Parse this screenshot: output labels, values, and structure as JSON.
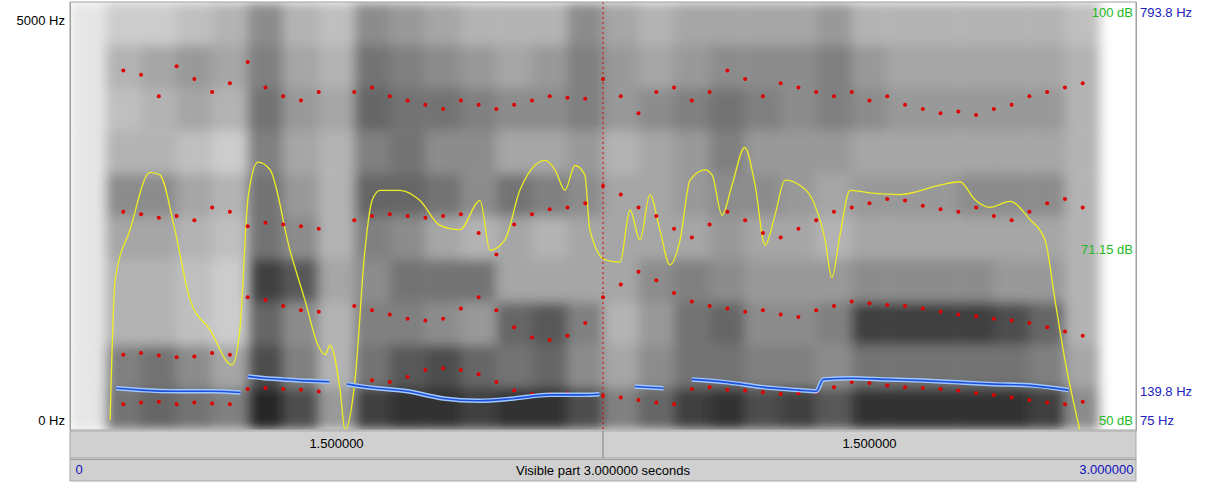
{
  "chart_data": {
    "type": "spectrogram",
    "xlim": [
      0,
      3
    ],
    "xticks": [
      0,
      {
        "value": 3,
        "label": "3.000000"
      }
    ],
    "x_label": "Visible part 3.000000 seconds",
    "cursor": 1.5,
    "cursor_segments": [
      {
        "value": 0.75,
        "label": "1.500000"
      },
      {
        "value": 2.25,
        "label": "1.500000"
      }
    ],
    "ylim": [
      0,
      5000
    ],
    "yticks": [
      {
        "value": 0,
        "label": "0 Hz"
      },
      {
        "value": 5000,
        "label": "5000 Hz"
      }
    ],
    "y2lim": [
      50,
      100
    ],
    "y2ticks": [
      {
        "value": 50,
        "label": "50 dB"
      },
      {
        "value": 71.15,
        "label": "71.15 dB"
      },
      {
        "value": 100,
        "label": "100 dB"
      }
    ],
    "y3lim": [
      75,
      793.8
    ],
    "y3ticks": [
      {
        "value": 75,
        "label": "75 Hz"
      },
      {
        "value": 139.8,
        "label": "139.8 Hz"
      },
      {
        "value": 793.8,
        "label": "793.8 Hz"
      }
    ],
    "spectrogram": {
      "zlim": [
        0,
        1
      ],
      "time_bins": [
        0,
        0.1,
        0.2,
        0.3,
        0.4,
        0.5,
        0.6,
        0.7,
        0.8,
        0.9,
        1.0,
        1.1,
        1.2,
        1.3,
        1.4,
        1.5,
        1.6,
        1.7,
        1.8,
        1.9,
        2.0,
        2.1,
        2.2,
        2.3,
        2.4,
        2.5,
        2.6,
        2.7,
        2.8,
        2.9,
        3.0
      ],
      "freq_bins": [
        0,
        500,
        1000,
        1500,
        2000,
        2500,
        3000,
        3500,
        4000,
        4500,
        5000
      ],
      "cells": [
        [
          0.1,
          0.1,
          0.1,
          0.1,
          0.1,
          0.1,
          0.1,
          0.1,
          0.1,
          0.1
        ],
        [
          0.55,
          0.5,
          0.3,
          0.3,
          0.35,
          0.45,
          0.3,
          0.25,
          0.3,
          0.2
        ],
        [
          0.6,
          0.55,
          0.3,
          0.3,
          0.35,
          0.45,
          0.3,
          0.3,
          0.35,
          0.2
        ],
        [
          0.55,
          0.45,
          0.25,
          0.25,
          0.3,
          0.35,
          0.25,
          0.35,
          0.4,
          0.25
        ],
        [
          0.5,
          0.35,
          0.2,
          0.2,
          0.25,
          0.3,
          0.2,
          0.3,
          0.35,
          0.3
        ],
        [
          0.85,
          0.7,
          0.6,
          0.75,
          0.55,
          0.55,
          0.5,
          0.55,
          0.5,
          0.45
        ],
        [
          0.7,
          0.5,
          0.45,
          0.65,
          0.45,
          0.4,
          0.35,
          0.4,
          0.35,
          0.3
        ],
        [
          0.4,
          0.3,
          0.3,
          0.35,
          0.3,
          0.3,
          0.3,
          0.35,
          0.3,
          0.25
        ],
        [
          0.75,
          0.55,
          0.5,
          0.45,
          0.5,
          0.6,
          0.5,
          0.6,
          0.55,
          0.45
        ],
        [
          0.8,
          0.65,
          0.5,
          0.55,
          0.45,
          0.6,
          0.55,
          0.55,
          0.5,
          0.4
        ],
        [
          0.8,
          0.7,
          0.45,
          0.55,
          0.35,
          0.55,
          0.45,
          0.55,
          0.45,
          0.35
        ],
        [
          0.75,
          0.6,
          0.4,
          0.55,
          0.3,
          0.45,
          0.45,
          0.5,
          0.4,
          0.3
        ],
        [
          0.8,
          0.55,
          0.6,
          0.35,
          0.35,
          0.55,
          0.35,
          0.45,
          0.35,
          0.3
        ],
        [
          0.8,
          0.6,
          0.65,
          0.35,
          0.3,
          0.5,
          0.35,
          0.45,
          0.4,
          0.3
        ],
        [
          0.7,
          0.45,
          0.5,
          0.35,
          0.35,
          0.45,
          0.4,
          0.5,
          0.5,
          0.45
        ],
        [
          0.5,
          0.35,
          0.3,
          0.35,
          0.35,
          0.35,
          0.3,
          0.4,
          0.4,
          0.35
        ],
        [
          0.6,
          0.45,
          0.4,
          0.45,
          0.35,
          0.35,
          0.35,
          0.45,
          0.35,
          0.3
        ],
        [
          0.75,
          0.55,
          0.55,
          0.5,
          0.35,
          0.4,
          0.4,
          0.5,
          0.4,
          0.35
        ],
        [
          0.8,
          0.55,
          0.6,
          0.45,
          0.4,
          0.45,
          0.5,
          0.55,
          0.45,
          0.35
        ],
        [
          0.7,
          0.5,
          0.45,
          0.4,
          0.35,
          0.45,
          0.4,
          0.5,
          0.45,
          0.35
        ],
        [
          0.75,
          0.5,
          0.45,
          0.4,
          0.35,
          0.4,
          0.4,
          0.45,
          0.45,
          0.35
        ],
        [
          0.65,
          0.45,
          0.5,
          0.4,
          0.3,
          0.35,
          0.4,
          0.5,
          0.5,
          0.4
        ],
        [
          0.8,
          0.55,
          0.75,
          0.45,
          0.35,
          0.4,
          0.35,
          0.45,
          0.4,
          0.3
        ],
        [
          0.8,
          0.55,
          0.75,
          0.45,
          0.35,
          0.4,
          0.35,
          0.4,
          0.35,
          0.3
        ],
        [
          0.8,
          0.55,
          0.75,
          0.45,
          0.35,
          0.4,
          0.35,
          0.4,
          0.35,
          0.3
        ],
        [
          0.8,
          0.55,
          0.75,
          0.45,
          0.35,
          0.45,
          0.35,
          0.4,
          0.35,
          0.3
        ],
        [
          0.8,
          0.55,
          0.7,
          0.4,
          0.35,
          0.45,
          0.35,
          0.4,
          0.35,
          0.3
        ],
        [
          0.75,
          0.5,
          0.6,
          0.4,
          0.35,
          0.45,
          0.35,
          0.4,
          0.35,
          0.3
        ],
        [
          0.45,
          0.35,
          0.3,
          0.3,
          0.3,
          0.3,
          0.3,
          0.3,
          0.3,
          0.25
        ],
        [
          0,
          0,
          0,
          0,
          0,
          0,
          0,
          0,
          0,
          0
        ]
      ]
    },
    "series": [
      {
        "type": "line",
        "axis": "y2",
        "color": "#eeee22",
        "line_style": "solid",
        "x": [
          0.113,
          0.127,
          0.169,
          0.225,
          0.253,
          0.295,
          0.338,
          0.394,
          0.456,
          0.478,
          0.501,
          0.529,
          0.563,
          0.619,
          0.661,
          0.698,
          0.718,
          0.732,
          0.76,
          0.774,
          0.802,
          0.83,
          0.85,
          0.872,
          0.929,
          0.985,
          1.041,
          1.097,
          1.154,
          1.182,
          1.224,
          1.266,
          1.337,
          1.365,
          1.393,
          1.421,
          1.449,
          1.463,
          1.505,
          1.548,
          1.576,
          1.604,
          1.632,
          1.66,
          1.688,
          1.717,
          1.745,
          1.787,
          1.807,
          1.835,
          1.863,
          1.899,
          1.928,
          1.956,
          1.984,
          2.012,
          2.054,
          2.096,
          2.125,
          2.144,
          2.167,
          2.195,
          2.251,
          2.336,
          2.448,
          2.504,
          2.547,
          2.589,
          2.645,
          2.701,
          2.744,
          2.772,
          2.8,
          2.842
        ],
        "values": [
          51.2,
          67.5,
          73.4,
          80.1,
          79.8,
          73.4,
          65.2,
          61.7,
          57.6,
          61.7,
          77.1,
          81.3,
          80.4,
          71.0,
          65.2,
          59.9,
          58.8,
          59.9,
          54.7,
          50.0,
          55.8,
          71.0,
          76.8,
          78.0,
          78.0,
          76.8,
          73.9,
          73.4,
          76.8,
          71.0,
          72.2,
          78.0,
          81.5,
          80.4,
          78.0,
          80.9,
          79.8,
          73.4,
          69.9,
          69.6,
          75.7,
          72.2,
          77.5,
          73.4,
          69.3,
          72.2,
          79.2,
          80.4,
          79.8,
          75.1,
          78.6,
          83.0,
          78.6,
          71.6,
          75.1,
          79.2,
          78.6,
          76.3,
          72.2,
          67.8,
          72.8,
          78.0,
          77.7,
          77.5,
          78.6,
          79.0,
          76.9,
          76.0,
          76.7,
          74.6,
          72.2,
          65.2,
          58.2,
          50.0
        ]
      },
      {
        "type": "scatter",
        "color": "#e00000",
        "marker": "dot",
        "x": [
          0.15,
          0.2,
          0.25,
          0.3,
          0.35,
          0.4,
          0.45,
          0.5,
          0.55,
          0.6,
          0.65,
          0.7,
          0.75,
          0.8,
          0.85,
          0.9,
          0.95,
          1.0,
          1.05,
          1.1,
          1.15,
          1.2,
          1.25,
          1.3,
          1.35,
          1.4,
          1.45,
          1.5,
          1.55,
          1.6,
          1.65,
          1.7,
          1.75,
          1.8,
          1.85,
          1.9,
          1.95,
          2.0,
          2.05,
          2.1,
          2.15,
          2.2,
          2.25,
          2.3,
          2.35,
          2.4,
          2.45,
          2.5,
          2.55,
          2.6,
          2.65,
          2.7,
          2.75,
          2.8,
          2.85
        ],
        "values": [
          300,
          320,
          330,
          300,
          320,
          310,
          300,
          480,
          490,
          480,
          470,
          450,
          null,
          520,
          580,
          560,
          620,
          700,
          720,
          700,
          650,
          560,
          460,
          420,
          420,
          430,
          410,
          400,
          380,
          350,
          320,
          300,
          480,
          500,
          470,
          460,
          440,
          420,
          430,
          440,
          500,
          560,
          550,
          520,
          500,
          490,
          480,
          460,
          430,
          410,
          380,
          350,
          320,
          300,
          330
        ]
      },
      {
        "type": "scatter",
        "color": "#e00000",
        "marker": "dot",
        "x": [
          0.15,
          0.2,
          0.25,
          0.3,
          0.35,
          0.4,
          0.45,
          0.5,
          0.55,
          0.6,
          0.65,
          0.7,
          0.75,
          0.8,
          0.85,
          0.9,
          0.95,
          1.0,
          1.05,
          1.1,
          1.15,
          1.2,
          1.25,
          1.3,
          1.35,
          1.4,
          1.45,
          1.5,
          1.55,
          1.6,
          1.65,
          1.7,
          1.75,
          1.8,
          1.85,
          1.9,
          1.95,
          2.0,
          2.05,
          2.1,
          2.15,
          2.2,
          2.25,
          2.3,
          2.35,
          2.4,
          2.45,
          2.5,
          2.55,
          2.6,
          2.65,
          2.7,
          2.75,
          2.8,
          2.85
        ],
        "values": [
          880,
          900,
          870,
          850,
          860,
          900,
          880,
          1550,
          1520,
          1450,
          1400,
          1380,
          null,
          1450,
          1400,
          1350,
          1300,
          1280,
          1300,
          1420,
          1550,
          1400,
          1200,
          1080,
          1050,
          1100,
          1250,
          1550,
          1700,
          1850,
          1750,
          1600,
          1500,
          1450,
          1420,
          1380,
          1400,
          1350,
          1320,
          1400,
          1450,
          1500,
          1480,
          1460,
          1450,
          1420,
          1380,
          1350,
          1330,
          1300,
          1280,
          1250,
          1200,
          1150,
          1100
        ]
      },
      {
        "type": "scatter",
        "color": "#e00000",
        "marker": "dot",
        "x": [
          0.15,
          0.2,
          0.25,
          0.3,
          0.35,
          0.4,
          0.45,
          0.5,
          0.55,
          0.6,
          0.65,
          0.7,
          0.75,
          0.8,
          0.85,
          0.9,
          0.95,
          1.0,
          1.05,
          1.1,
          1.15,
          1.2,
          1.25,
          1.3,
          1.35,
          1.4,
          1.45,
          1.5,
          1.55,
          1.6,
          1.65,
          1.7,
          1.75,
          1.8,
          1.85,
          1.9,
          1.95,
          2.0,
          2.05,
          2.1,
          2.15,
          2.2,
          2.25,
          2.3,
          2.35,
          2.4,
          2.45,
          2.5,
          2.55,
          2.6,
          2.65,
          2.7,
          2.75,
          2.8,
          2.85
        ],
        "values": [
          2550,
          2520,
          2480,
          2500,
          2450,
          2600,
          2550,
          2380,
          2420,
          2400,
          2380,
          2350,
          null,
          2450,
          2500,
          2520,
          2500,
          2480,
          2500,
          2520,
          2300,
          2050,
          2400,
          2520,
          2580,
          2600,
          2650,
          2850,
          2750,
          2600,
          2500,
          2350,
          2250,
          2400,
          2550,
          2450,
          2300,
          2250,
          2350,
          2450,
          2550,
          2600,
          2650,
          2700,
          2680,
          2620,
          2580,
          2550,
          2600,
          2500,
          2450,
          2550,
          2650,
          2700,
          2600
        ]
      },
      {
        "type": "scatter",
        "color": "#e00000",
        "marker": "dot",
        "x": [
          0.15,
          0.2,
          0.25,
          0.3,
          0.35,
          0.4,
          0.45,
          0.5,
          0.55,
          0.6,
          0.65,
          0.7,
          0.75,
          0.8,
          0.85,
          0.9,
          0.95,
          1.0,
          1.05,
          1.1,
          1.15,
          1.2,
          1.25,
          1.3,
          1.35,
          1.4,
          1.45,
          1.5,
          1.55,
          1.6,
          1.65,
          1.7,
          1.75,
          1.8,
          1.85,
          1.9,
          1.95,
          2.0,
          2.05,
          2.1,
          2.15,
          2.2,
          2.25,
          2.3,
          2.35,
          2.4,
          2.45,
          2.5,
          2.55,
          2.6,
          2.65,
          2.7,
          2.75,
          2.8,
          2.85
        ],
        "values": [
          4200,
          4150,
          3900,
          4250,
          4100,
          3950,
          4050,
          4300,
          4000,
          3900,
          3850,
          3950,
          null,
          3950,
          4000,
          3900,
          3850,
          3800,
          3750,
          3850,
          3800,
          3750,
          3800,
          3850,
          3900,
          3880,
          3870,
          4100,
          3900,
          3700,
          3950,
          4000,
          3850,
          3950,
          4200,
          4100,
          3900,
          4050,
          4000,
          3950,
          3900,
          3950,
          3850,
          3900,
          3800,
          3750,
          3700,
          3720,
          3680,
          3750,
          3800,
          3900,
          3950,
          4000,
          4050
        ]
      },
      {
        "type": "line",
        "axis": "y3",
        "color": "#1e4fd8",
        "line_style": "double",
        "x": [
          0.13,
          0.2,
          0.3,
          0.4,
          0.48,
          0.49,
          0.5,
          0.55,
          0.6,
          0.65,
          0.73,
          0.75,
          0.78,
          0.85,
          0.95,
          1.05,
          1.15,
          1.25,
          1.35,
          1.45,
          1.49,
          1.52,
          1.59,
          1.67,
          1.7,
          1.75,
          1.85,
          1.95,
          2.05,
          2.1,
          2.12,
          2.2,
          2.3,
          2.4,
          2.5,
          2.6,
          2.7,
          2.81
        ],
        "values": [
          145,
          142,
          140,
          140,
          138,
          null,
          165,
          162,
          160,
          158,
          156,
          null,
          152,
          146,
          140,
          128,
          124,
          128,
          134,
          134,
          135,
          null,
          148,
          145,
          null,
          160,
          155,
          147,
          142,
          140,
          160,
          162,
          160,
          158,
          155,
          152,
          150,
          142
        ]
      }
    ]
  }
}
